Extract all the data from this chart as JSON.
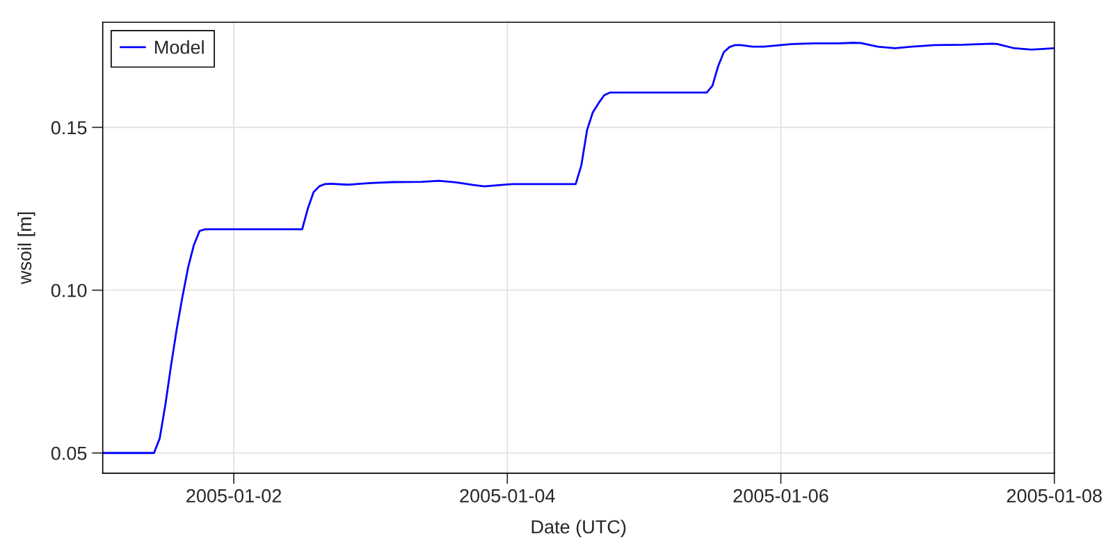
{
  "chart_data": {
    "type": "line",
    "xlabel": "Date (UTC)",
    "ylabel": "wsoil [m]",
    "x": [
      "2005-01-01T01:00",
      "2005-01-01T10:00",
      "2005-01-01T11:00",
      "2005-01-01T12:00",
      "2005-01-01T13:00",
      "2005-01-01T14:00",
      "2005-01-01T15:00",
      "2005-01-01T16:00",
      "2005-01-01T17:00",
      "2005-01-01T18:00",
      "2005-01-01T19:00",
      "2005-01-02T12:00",
      "2005-01-02T13:00",
      "2005-01-02T14:00",
      "2005-01-02T15:00",
      "2005-01-02T16:00",
      "2005-01-02T17:00",
      "2005-01-02T20:00",
      "2005-01-03T00:00",
      "2005-01-03T04:00",
      "2005-01-03T09:00",
      "2005-01-03T12:00",
      "2005-01-03T15:00",
      "2005-01-03T18:00",
      "2005-01-03T20:00",
      "2005-01-04T00:00",
      "2005-01-04T01:00",
      "2005-01-04T12:00",
      "2005-01-04T13:00",
      "2005-01-04T14:00",
      "2005-01-04T15:00",
      "2005-01-04T16:00",
      "2005-01-04T17:00",
      "2005-01-04T18:00",
      "2005-01-05T11:00",
      "2005-01-05T12:00",
      "2005-01-05T13:00",
      "2005-01-05T14:00",
      "2005-01-05T15:00",
      "2005-01-05T16:00",
      "2005-01-05T17:00",
      "2005-01-05T19:00",
      "2005-01-05T21:00",
      "2005-01-06T00:00",
      "2005-01-06T02:00",
      "2005-01-06T06:00",
      "2005-01-06T10:00",
      "2005-01-06T13:00",
      "2005-01-06T14:00",
      "2005-01-06T17:00",
      "2005-01-06T20:00",
      "2005-01-06T23:00",
      "2005-01-07T03:00",
      "2005-01-07T08:00",
      "2005-01-07T13:00",
      "2005-01-07T14:00",
      "2005-01-07T17:00",
      "2005-01-07T20:00",
      "2005-01-07T22:00",
      "2005-01-08T00:00"
    ],
    "series": [
      {
        "name": "Model",
        "color": "#0000ff",
        "values": [
          0.05,
          0.05,
          0.0545,
          0.0649,
          0.077,
          0.0882,
          0.0981,
          0.1071,
          0.1139,
          0.1182,
          0.1187,
          0.1187,
          0.1251,
          0.1301,
          0.1319,
          0.1326,
          0.1327,
          0.1324,
          0.1329,
          0.1332,
          0.1333,
          0.1336,
          0.1331,
          0.1323,
          0.1319,
          0.1325,
          0.1326,
          0.1326,
          0.1384,
          0.1492,
          0.1546,
          0.1574,
          0.1599,
          0.1607,
          0.1607,
          0.1628,
          0.1688,
          0.1731,
          0.1747,
          0.1753,
          0.1753,
          0.1748,
          0.1748,
          0.1753,
          0.1756,
          0.1758,
          0.1758,
          0.176,
          0.1759,
          0.1748,
          0.1743,
          0.1748,
          0.1753,
          0.1754,
          0.1757,
          0.1756,
          0.1743,
          0.1739,
          0.1741,
          0.1743
        ]
      }
    ],
    "xlim": [
      "2005-01-01T01:00",
      "2005-01-08"
    ],
    "xticks": [
      "2005-01-02",
      "2005-01-04",
      "2005-01-06",
      "2005-01-08"
    ],
    "ylim": [
      0.0438,
      0.1823
    ],
    "yticks": [
      0.05,
      {
        "value": 0.1,
        "label": "0.10"
      },
      0.15
    ],
    "grid": true,
    "legend": "top left",
    "line_style": "solid"
  }
}
